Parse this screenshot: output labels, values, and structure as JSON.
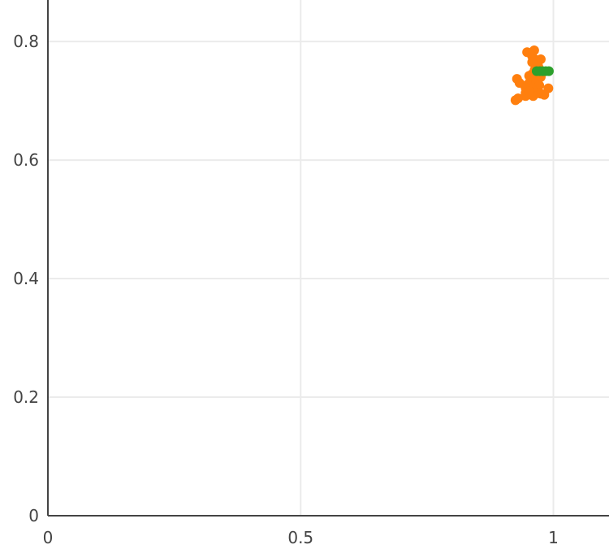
{
  "chart_data": {
    "type": "scatter",
    "title": "",
    "xlabel": "",
    "ylabel": "",
    "xlim": [
      0,
      1.11
    ],
    "ylim": [
      0,
      0.87
    ],
    "grid": true,
    "x_ticks": [
      {
        "value": 0,
        "label": "0"
      },
      {
        "value": 0.5,
        "label": "0.5"
      },
      {
        "value": 1,
        "label": "1"
      }
    ],
    "y_ticks": [
      {
        "value": 0,
        "label": "0"
      },
      {
        "value": 0.2,
        "label": "0.2"
      },
      {
        "value": 0.4,
        "label": "0.4"
      },
      {
        "value": 0.6,
        "label": "0.6"
      },
      {
        "value": 0.8,
        "label": "0.8"
      }
    ],
    "series": [
      {
        "color": "#ff7f0e",
        "points": [
          [
            0.948,
            0.782
          ],
          [
            0.955,
            0.78
          ],
          [
            0.962,
            0.785
          ],
          [
            0.958,
            0.775
          ],
          [
            0.963,
            0.77
          ],
          [
            0.975,
            0.77
          ],
          [
            0.958,
            0.765
          ],
          [
            0.97,
            0.758
          ],
          [
            0.963,
            0.752
          ],
          [
            0.958,
            0.745
          ],
          [
            0.952,
            0.742
          ],
          [
            0.962,
            0.742
          ],
          [
            0.975,
            0.74
          ],
          [
            0.968,
            0.738
          ],
          [
            0.955,
            0.735
          ],
          [
            0.96,
            0.732
          ],
          [
            0.928,
            0.737
          ],
          [
            0.933,
            0.73
          ],
          [
            0.95,
            0.728
          ],
          [
            0.965,
            0.728
          ],
          [
            0.972,
            0.726
          ],
          [
            0.945,
            0.722
          ],
          [
            0.958,
            0.72
          ],
          [
            0.99,
            0.721
          ],
          [
            0.945,
            0.713
          ],
          [
            0.965,
            0.712
          ],
          [
            0.975,
            0.712
          ],
          [
            0.982,
            0.71
          ],
          [
            0.96,
            0.708
          ],
          [
            0.945,
            0.708
          ],
          [
            0.93,
            0.704
          ],
          [
            0.925,
            0.701
          ],
          [
            0.952,
            0.716
          ]
        ]
      },
      {
        "color": "#2ca02c",
        "points": [
          [
            0.967,
            0.75
          ],
          [
            0.973,
            0.75
          ],
          [
            0.979,
            0.75
          ],
          [
            0.985,
            0.75
          ],
          [
            0.991,
            0.75
          ]
        ]
      }
    ]
  }
}
